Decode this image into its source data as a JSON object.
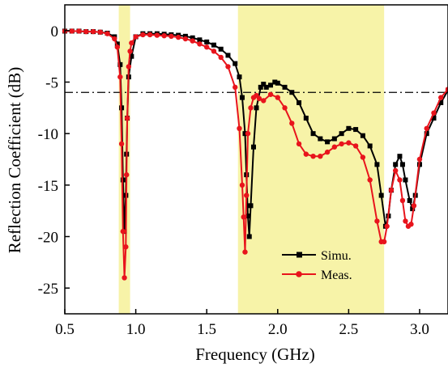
{
  "chart_data": {
    "type": "line",
    "xlabel": "Frequency (GHz)",
    "ylabel": "Reflection Coefficient (dB)",
    "xlim": [
      0.5,
      3.2
    ],
    "ylim": [
      -27.5,
      2.5
    ],
    "x_ticks": [
      0.5,
      1.0,
      1.5,
      2.0,
      2.5,
      3.0
    ],
    "x_tick_labels": [
      "0.5",
      "1.0",
      "1.5",
      "2.0",
      "2.5",
      "3.0"
    ],
    "y_ticks": [
      0,
      -5,
      -10,
      -15,
      -20,
      -25
    ],
    "y_tick_labels": [
      "0",
      "-5",
      "-10",
      "-15",
      "-20",
      "-25"
    ],
    "grid": false,
    "legend_position": "lower-center",
    "reference_line": {
      "y": -6,
      "style": "dash-dot",
      "color": "#000000"
    },
    "highlight_bands": [
      {
        "x0": 0.88,
        "x1": 0.96,
        "color": "#f7f3a8"
      },
      {
        "x0": 1.72,
        "x1": 2.75,
        "color": "#f7f3a8"
      }
    ],
    "series": [
      {
        "name": "Simu.",
        "color": "#000000",
        "marker": "square",
        "x": [
          0.5,
          0.55,
          0.6,
          0.65,
          0.7,
          0.75,
          0.8,
          0.85,
          0.87,
          0.89,
          0.9,
          0.91,
          0.92,
          0.93,
          0.935,
          0.94,
          0.95,
          0.97,
          1.0,
          1.05,
          1.1,
          1.15,
          1.2,
          1.25,
          1.3,
          1.35,
          1.4,
          1.45,
          1.5,
          1.55,
          1.6,
          1.65,
          1.7,
          1.73,
          1.75,
          1.77,
          1.78,
          1.79,
          1.8,
          1.81,
          1.83,
          1.85,
          1.88,
          1.9,
          1.92,
          1.95,
          1.98,
          2.0,
          2.05,
          2.1,
          2.15,
          2.2,
          2.25,
          2.3,
          2.35,
          2.4,
          2.45,
          2.5,
          2.55,
          2.6,
          2.65,
          2.7,
          2.73,
          2.76,
          2.78,
          2.8,
          2.83,
          2.86,
          2.88,
          2.9,
          2.93,
          2.95,
          2.97,
          3.0,
          3.05,
          3.1,
          3.15,
          3.2
        ],
        "values": [
          -0.05,
          -0.05,
          -0.05,
          -0.1,
          -0.1,
          -0.15,
          -0.25,
          -0.6,
          -1.3,
          -3.3,
          -7.5,
          -14.5,
          -19.5,
          -16,
          -12,
          -8.5,
          -4.5,
          -2.5,
          -0.6,
          -0.3,
          -0.3,
          -0.3,
          -0.35,
          -0.4,
          -0.45,
          -0.55,
          -0.7,
          -0.9,
          -1.1,
          -1.4,
          -1.8,
          -2.4,
          -3.2,
          -4.5,
          -6.5,
          -10,
          -14,
          -18,
          -20,
          -17,
          -11.3,
          -7.5,
          -5.5,
          -5.2,
          -5.5,
          -5.3,
          -5.0,
          -5.1,
          -5.5,
          -6.0,
          -7.0,
          -8.5,
          -10.0,
          -10.5,
          -10.8,
          -10.5,
          -10,
          -9.5,
          -9.6,
          -10.2,
          -11.2,
          -13,
          -16,
          -19,
          -18,
          -15.5,
          -13,
          -12.2,
          -13,
          -14.5,
          -16.5,
          -17.3,
          -16,
          -13,
          -10,
          -8.5,
          -7,
          -5.8
        ]
      },
      {
        "name": "Meas.",
        "color": "#e8141c",
        "marker": "circle",
        "x": [
          0.5,
          0.55,
          0.6,
          0.65,
          0.7,
          0.75,
          0.8,
          0.85,
          0.87,
          0.89,
          0.9,
          0.91,
          0.92,
          0.93,
          0.935,
          0.94,
          0.95,
          0.96,
          0.97,
          1.0,
          1.05,
          1.1,
          1.15,
          1.2,
          1.25,
          1.3,
          1.35,
          1.4,
          1.45,
          1.5,
          1.55,
          1.6,
          1.65,
          1.7,
          1.73,
          1.75,
          1.76,
          1.77,
          1.78,
          1.79,
          1.81,
          1.83,
          1.85,
          1.87,
          1.9,
          1.95,
          2.0,
          2.05,
          2.1,
          2.15,
          2.2,
          2.25,
          2.3,
          2.35,
          2.4,
          2.45,
          2.5,
          2.55,
          2.6,
          2.65,
          2.7,
          2.73,
          2.75,
          2.77,
          2.8,
          2.83,
          2.86,
          2.88,
          2.9,
          2.92,
          2.94,
          2.96,
          3.0,
          3.05,
          3.1,
          3.15,
          3.2
        ],
        "values": [
          -0.05,
          -0.05,
          -0.05,
          -0.1,
          -0.1,
          -0.15,
          -0.3,
          -0.8,
          -1.6,
          -4.5,
          -11,
          -19.5,
          -24,
          -21,
          -14,
          -8.5,
          -3.5,
          -2.0,
          -1.2,
          -0.6,
          -0.4,
          -0.4,
          -0.45,
          -0.5,
          -0.55,
          -0.65,
          -0.8,
          -1.0,
          -1.3,
          -1.6,
          -2.0,
          -2.6,
          -3.5,
          -5.5,
          -9.5,
          -15,
          -18.1,
          -21.5,
          -16,
          -10,
          -7.5,
          -6.5,
          -6.3,
          -6.6,
          -6.8,
          -6.2,
          -6.5,
          -7.5,
          -9.0,
          -11,
          -12,
          -12.2,
          -12.2,
          -11.8,
          -11.3,
          -11,
          -10.9,
          -11.2,
          -12.3,
          -14.5,
          -18.5,
          -20.5,
          -20.5,
          -19,
          -15.5,
          -13.6,
          -14.5,
          -16.5,
          -18.5,
          -19,
          -18.8,
          -17,
          -12.5,
          -9.5,
          -8,
          -6.5,
          -5.7
        ]
      }
    ]
  }
}
